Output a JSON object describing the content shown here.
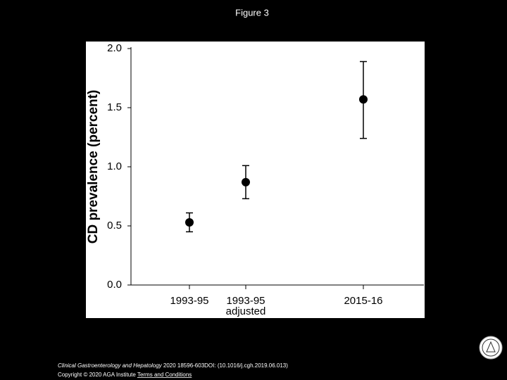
{
  "slide_title": "Figure 3",
  "citation": {
    "journal": "Clinical Gastroenterology and Hepatology",
    "details": "2020 18596-603DOI: (10.1016/j.cgh.2019.06.013)"
  },
  "copyright": "Copyright © 2020 AGA Institute",
  "link": "Terms and Conditions",
  "chart_data": {
    "type": "errorbar",
    "y_label": "CD prevalence (percent)",
    "categories": [
      "1993-95",
      "1993-95 adjusted",
      "2015-16"
    ],
    "values": [
      0.53,
      0.87,
      1.57
    ],
    "lower": [
      0.45,
      0.73,
      1.24
    ],
    "upper": [
      0.61,
      1.01,
      1.89
    ],
    "color": "#000000",
    "ylim": [
      0,
      2
    ],
    "yticks": [
      {
        "value": 0,
        "label": "0.0"
      },
      0.5,
      {
        "value": 1,
        "label": "1.0"
      },
      1.5,
      {
        "value": 2,
        "label": "2.0"
      }
    ]
  }
}
